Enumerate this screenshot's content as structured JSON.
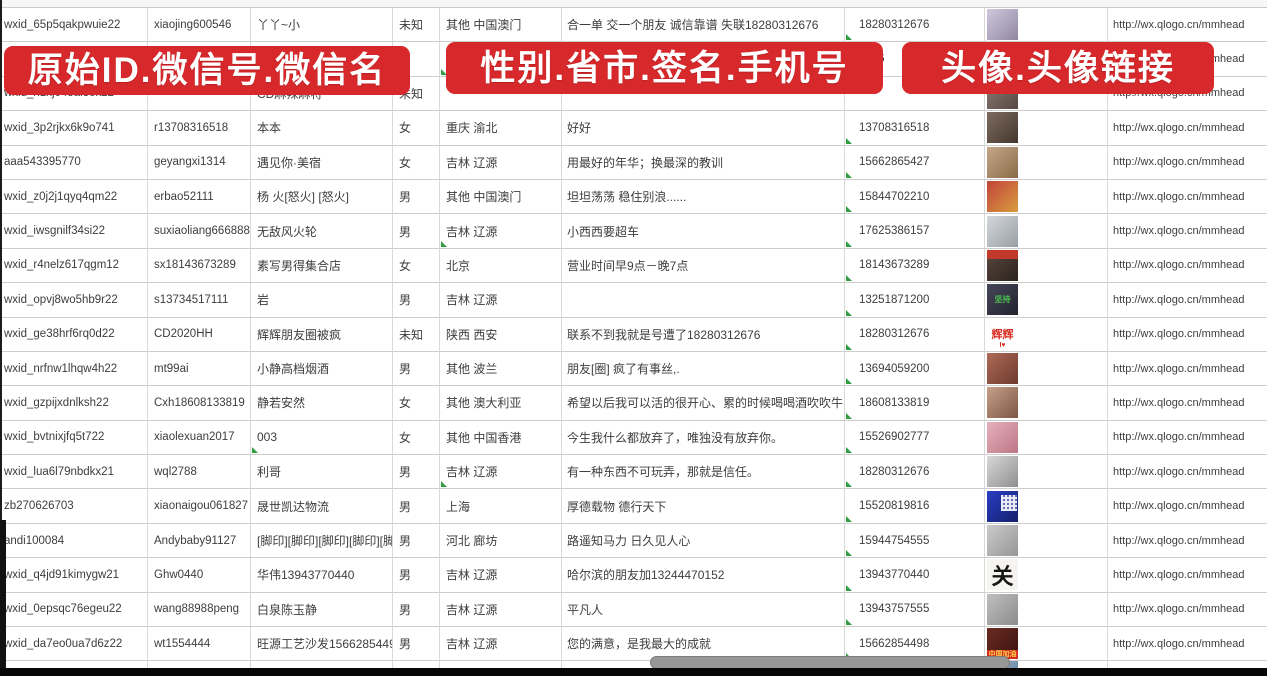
{
  "banners": {
    "left": "原始ID.微信号.微信名",
    "middle": "性别.省市.签名.手机号",
    "right": "头像.头像链接"
  },
  "colors": {
    "banner_red": "#d7282b",
    "banner_text": "#ffffff",
    "gridline": "#cdcdcd",
    "cell_text": "#3d3d3d",
    "flag_green": "#2f9e44",
    "scrollbar_thumb": "#979797",
    "bottom_bar": "#070707"
  },
  "table": {
    "rows": [
      {
        "wxid": "wxid_65p5qakpwuie22",
        "wechat_id": "xiaojing600546",
        "nickname": "丫丫~小",
        "gender": "未知",
        "region": "其他 中国澳门",
        "signature": "合一单 交一个朋友 诚信靠谱 失联18280312676",
        "phone": "18280312676",
        "avatar_link": "http://wx.qlogo.cn/mmhead",
        "flags": [
          "phone"
        ],
        "avatar": {
          "colors": [
            "#cfc8dc",
            "#9186a4"
          ]
        }
      },
      {
        "wxid": "",
        "wechat_id": "",
        "nickname": "",
        "gender": "",
        "region": "",
        "signature": "",
        "phone": "5386",
        "avatar_link": "http://wx.qlogo.cn/mmhead",
        "flags": [
          "province"
        ],
        "avatar": {
          "colors": [
            "#e8e4ea",
            "#b8c4d8"
          ]
        }
      },
      {
        "wxid": "wxid_h1xj048al3ok22",
        "wechat_id": "",
        "nickname": "CD麻辣麻将",
        "gender": "未知",
        "region": "",
        "signature": "",
        "phone": "",
        "avatar_link": "http://wx.qlogo.cn/mmhead",
        "flags": [],
        "avatar": {
          "colors": [
            "#8d7f78",
            "#564740"
          ]
        }
      },
      {
        "wxid": "wxid_3p2rjkx6k9o741",
        "wechat_id": "r13708316518",
        "nickname": "本本",
        "gender": "女",
        "region": "重庆 渝北",
        "signature": "好好",
        "phone": "13708316518",
        "avatar_link": "http://wx.qlogo.cn/mmhead",
        "flags": [
          "phone"
        ],
        "avatar": {
          "colors": [
            "#7d6b5f",
            "#45372e"
          ]
        }
      },
      {
        "wxid": "aaa543395770",
        "wechat_id": "geyangxi1314",
        "nickname": "遇见你·美宿",
        "gender": "女",
        "region": "吉林 辽源",
        "signature": "用最好的年华；换最深的教训",
        "phone": "15662865427",
        "avatar_link": "http://wx.qlogo.cn/mmhead",
        "flags": [
          "phone"
        ],
        "avatar": {
          "colors": [
            "#c5a888",
            "#8a6b49"
          ]
        }
      },
      {
        "wxid": "wxid_z0j2j1qyq4qm22",
        "wechat_id": "erbao52111",
        "nickname": "杨 火[怒火] [怒火]",
        "gender": "男",
        "region": "其他 中国澳门",
        "signature": "坦坦荡荡 稳住别浪......",
        "phone": "15844702210",
        "avatar_link": "http://wx.qlogo.cn/mmhead",
        "flags": [
          "phone"
        ],
        "avatar": {
          "colors": [
            "#c0453a",
            "#d89c3e"
          ]
        }
      },
      {
        "wxid": "wxid_iwsgnilf34si22",
        "wechat_id": "suxiaoliang666888",
        "nickname": "无敌风火轮",
        "gender": "男",
        "region": "吉林 辽源",
        "signature": "小西西要超车",
        "phone": "17625386157",
        "avatar_link": "http://wx.qlogo.cn/mmhead",
        "flags": [
          "phone",
          "province"
        ],
        "avatar": {
          "colors": [
            "#d4d7da",
            "#989fa6"
          ]
        }
      },
      {
        "wxid": "wxid_r4nelz617qgm12",
        "wechat_id": "sx18143673289",
        "nickname": "素写男得集合店",
        "gender": "女",
        "region": "北京",
        "signature": "营业时间早9点－晚7点",
        "phone": "18143673289",
        "avatar_link": "http://wx.qlogo.cn/mmhead",
        "flags": [
          "phone"
        ],
        "avatar": {
          "colors": [
            "#59483f",
            "#2c231d"
          ],
          "strip": {
            "pos": "top",
            "color": "#c0392b",
            "text": "",
            "text_color": "#ffffff"
          }
        }
      },
      {
        "wxid": "wxid_opvj8wo5hb9r22",
        "wechat_id": "s13734517111",
        "nickname": "岩",
        "gender": "男",
        "region": "吉林 辽源",
        "signature": "",
        "phone": "13251871200",
        "avatar_link": "http://wx.qlogo.cn/mmhead",
        "flags": [
          "phone"
        ],
        "avatar": {
          "colors": [
            "#46465a",
            "#23232e"
          ],
          "label": "坚持",
          "label_color": "#4cbf50",
          "label_size": 8
        }
      },
      {
        "wxid": "wxid_ge38hrf6rq0d22",
        "wechat_id": "CD2020HH",
        "nickname": "辉辉朋友圈被疯",
        "gender": "未知",
        "region": "陕西 西安",
        "signature": "联系不到我就是号遭了18280312676",
        "phone": "18280312676",
        "avatar_link": "http://wx.qlogo.cn/mmhead",
        "flags": [
          "phone"
        ],
        "avatar": {
          "bg": "#ffffff",
          "label": "辉辉",
          "label_color": "#d93025",
          "label_size": 11,
          "strip": {
            "pos": "bottom",
            "color": "transparent",
            "text": "I♥",
            "text_color": "#d93025"
          }
        }
      },
      {
        "wxid": "wxid_nrfnw1lhqw4h22",
        "wechat_id": "mt99ai",
        "nickname": "小静高档烟酒",
        "gender": "男",
        "region": "其他 波兰",
        "signature": "朋友[圈] 疯了有事丝,.",
        "phone": "13694059200",
        "avatar_link": "http://wx.qlogo.cn/mmhead",
        "flags": [
          "phone"
        ],
        "avatar": {
          "colors": [
            "#b06a58",
            "#6b3a2d"
          ]
        }
      },
      {
        "wxid": "wxid_gzpijxdnlksh22",
        "wechat_id": "Cxh18608133819",
        "nickname": "静若安然",
        "gender": "女",
        "region": "其他 澳大利亚",
        "signature": "希望以后我可以活的很开心、累的时候喝喝酒吹吹牛",
        "phone": "18608133819",
        "avatar_link": "http://wx.qlogo.cn/mmhead",
        "flags": [
          "phone"
        ],
        "avatar": {
          "colors": [
            "#c79f8a",
            "#7c5743"
          ]
        }
      },
      {
        "wxid": "wxid_bvtnixjfq5t722",
        "wechat_id": "xiaolexuan2017",
        "nickname": "003",
        "gender": "女",
        "region": "其他 中国香港",
        "signature": "今生我什么都放弃了，唯独没有放弃你。",
        "phone": "15526902777",
        "avatar_link": "http://wx.qlogo.cn/mmhead",
        "flags": [
          "phone",
          "name"
        ],
        "avatar": {
          "colors": [
            "#e5b2bc",
            "#bd7585"
          ]
        }
      },
      {
        "wxid": "wxid_lua6l79nbdkx21",
        "wechat_id": "wql2788",
        "nickname": "利哥",
        "gender": "男",
        "region": "吉林 辽源",
        "signature": "有一种东西不可玩弄，那就是信任。",
        "phone": "18280312676",
        "avatar_link": "http://wx.qlogo.cn/mmhead",
        "flags": [
          "phone",
          "province"
        ],
        "avatar": {
          "colors": [
            "#d9d9d9",
            "#8e8e8e"
          ]
        }
      },
      {
        "wxid": "zb270626703",
        "wechat_id": "xiaonaigou061827",
        "nickname": "晟世凯达物流",
        "gender": "男",
        "region": "上海",
        "signature": "厚德载物 德行天下",
        "phone": "15520819816",
        "avatar_link": "http://wx.qlogo.cn/mmhead",
        "flags": [
          "phone"
        ],
        "avatar": {
          "colors": [
            "#2a3ec4",
            "#141f6b"
          ],
          "pattern": "qr"
        }
      },
      {
        "wxid": "andi100084",
        "wechat_id": "Andybaby91127",
        "nickname": "[脚印][脚印][脚印][脚印][脚印]",
        "gender": "男",
        "region": "河北 廊坊",
        "signature": "路遥知马力 日久见人心",
        "phone": "15944754555",
        "avatar_link": "http://wx.qlogo.cn/mmhead",
        "flags": [
          "phone"
        ],
        "avatar": {
          "colors": [
            "#cbcbcb",
            "#969696"
          ]
        }
      },
      {
        "wxid": "wxid_q4jd91kimygw21",
        "wechat_id": "Ghw0440",
        "nickname": "华伟13943770440",
        "gender": "男",
        "region": "吉林 辽源",
        "signature": "哈尔滨的朋友加13244470152",
        "phone": "13943770440",
        "avatar_link": "http://wx.qlogo.cn/mmhead",
        "flags": [
          "phone"
        ],
        "avatar": {
          "bg": "#f6f4f0",
          "label": "关",
          "label_color": "#161616",
          "label_size": 22
        }
      },
      {
        "wxid": "wxid_0epsqc76egeu22",
        "wechat_id": "wang88988peng",
        "nickname": "白泉陈玉静",
        "gender": "男",
        "region": "吉林 辽源",
        "signature": "平凡人",
        "phone": "13943757555",
        "avatar_link": "http://wx.qlogo.cn/mmhead",
        "flags": [
          "phone"
        ],
        "avatar": {
          "colors": [
            "#bfbfbf",
            "#8c8c8c"
          ]
        }
      },
      {
        "wxid": "wxid_da7eo0ua7d6z22",
        "wechat_id": "wt1554444",
        "nickname": "旺源工艺沙发15662854498",
        "gender": "男",
        "region": "吉林 辽源",
        "signature": "您的满意，是我最大的成就",
        "phone": "15662854498",
        "avatar_link": "http://wx.qlogo.cn/mmhead",
        "flags": [
          "phone"
        ],
        "avatar": {
          "colors": [
            "#6b2b21",
            "#381410"
          ],
          "strip": {
            "pos": "bottom",
            "color": "#d42a20",
            "text": "中国加油",
            "text_color": "#ffd24a"
          }
        }
      }
    ],
    "partial_row": {
      "avatar": {
        "colors": [
          "#a3b8cc",
          "#62829e"
        ]
      }
    }
  }
}
